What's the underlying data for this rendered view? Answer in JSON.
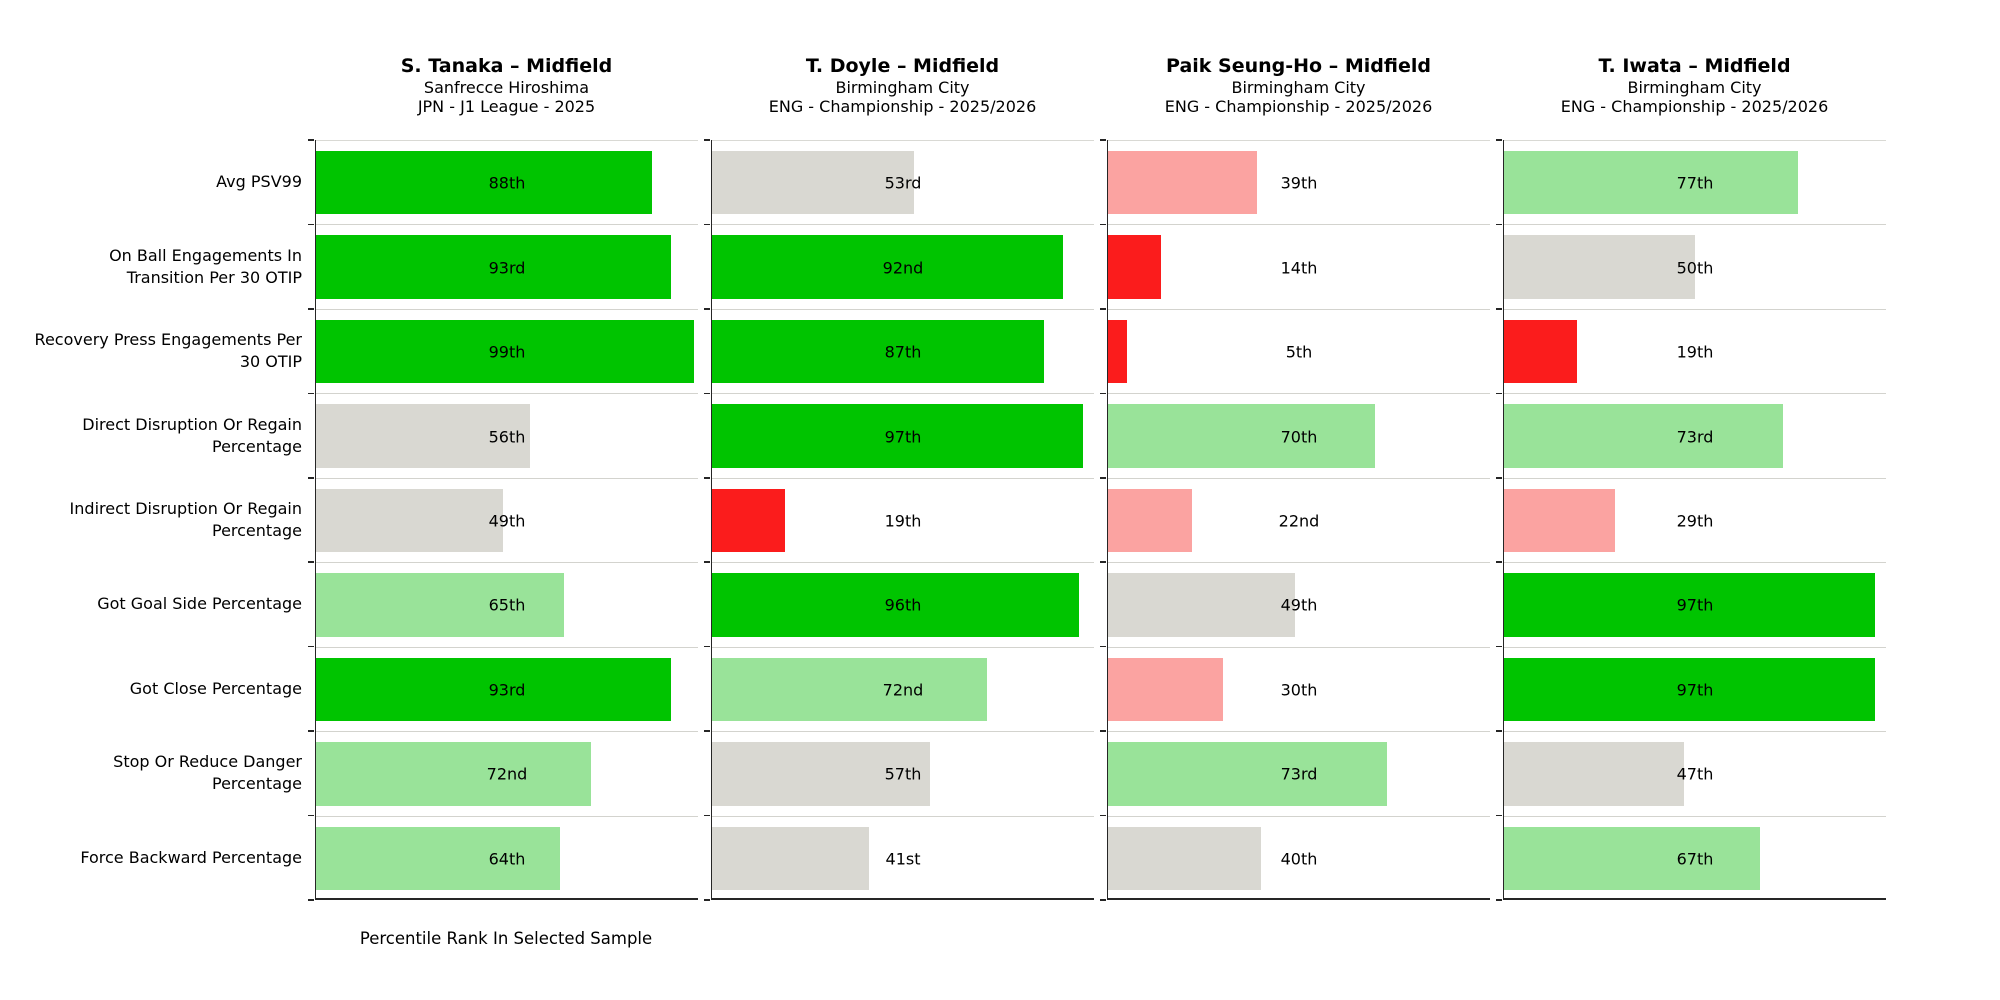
{
  "chart_data": {
    "type": "bar",
    "orientation": "horizontal",
    "xlabel": "Percentile Rank In Selected Sample",
    "xlim": [
      0,
      100
    ],
    "grid": "row-separator-lines",
    "legend_position": "none",
    "metrics": [
      {
        "label": "Avg PSV99",
        "lines": "Avg PSV99"
      },
      {
        "label": "On Ball Engagements In Transition Per 30 OTIP",
        "lines": "On Ball Engagements In\nTransition Per 30 OTIP"
      },
      {
        "label": "Recovery Press Engagements Per 30 OTIP",
        "lines": "Recovery Press Engagements Per\n30 OTIP"
      },
      {
        "label": "Direct Disruption Or Regain Percentage",
        "lines": "Direct Disruption Or Regain\nPercentage"
      },
      {
        "label": "Indirect Disruption Or Regain Percentage",
        "lines": "Indirect Disruption Or Regain\nPercentage"
      },
      {
        "label": "Got Goal Side Percentage",
        "lines": "Got Goal Side Percentage"
      },
      {
        "label": "Got Close Percentage",
        "lines": "Got Close Percentage"
      },
      {
        "label": "Stop Or Reduce Danger Percentage",
        "lines": "Stop Or Reduce Danger\nPercentage"
      },
      {
        "label": "Force Backward Percentage",
        "lines": "Force Backward Percentage"
      }
    ],
    "players": [
      {
        "name": "S. Tanaka – Midfield",
        "team": "Sanfrecce Hiroshima",
        "competition": "JPN - J1 League - 2025",
        "values": [
          88,
          93,
          99,
          56,
          49,
          65,
          93,
          72,
          64
        ],
        "value_labels": [
          "88th",
          "93rd",
          "99th",
          "56th",
          "49th",
          "65th",
          "93rd",
          "72nd",
          "64th"
        ]
      },
      {
        "name": "T. Doyle – Midfield",
        "team": "Birmingham City",
        "competition": "ENG - Championship - 2025/2026",
        "values": [
          53,
          92,
          87,
          97,
          19,
          96,
          72,
          57,
          41
        ],
        "value_labels": [
          "53rd",
          "92nd",
          "87th",
          "97th",
          "19th",
          "96th",
          "72nd",
          "57th",
          "41st"
        ]
      },
      {
        "name": "Paik Seung-Ho – Midfield",
        "team": "Birmingham City",
        "competition": "ENG - Championship - 2025/2026",
        "values": [
          39,
          14,
          5,
          70,
          22,
          49,
          30,
          73,
          40
        ],
        "value_labels": [
          "39th",
          "14th",
          "5th",
          "70th",
          "22nd",
          "49th",
          "30th",
          "73rd",
          "40th"
        ]
      },
      {
        "name": "T. Iwata – Midfield",
        "team": "Birmingham City",
        "competition": "ENG - Championship - 2025/2026",
        "values": [
          77,
          50,
          19,
          73,
          29,
          97,
          97,
          47,
          67
        ],
        "value_labels": [
          "77th",
          "50th",
          "19th",
          "73rd",
          "29th",
          "97th",
          "97th",
          "47th",
          "67th"
        ]
      }
    ],
    "color_scale": [
      {
        "min": 80,
        "color": "#00c400",
        "meaning": "excellent"
      },
      {
        "min": 60,
        "color": "#99e399",
        "meaning": "good"
      },
      {
        "min": 40,
        "color": "#d9d8d2",
        "meaning": "average"
      },
      {
        "min": 20,
        "color": "#fba3a1",
        "meaning": "below-average"
      },
      {
        "min": 0,
        "color": "#fb1c1c",
        "meaning": "poor"
      }
    ]
  }
}
